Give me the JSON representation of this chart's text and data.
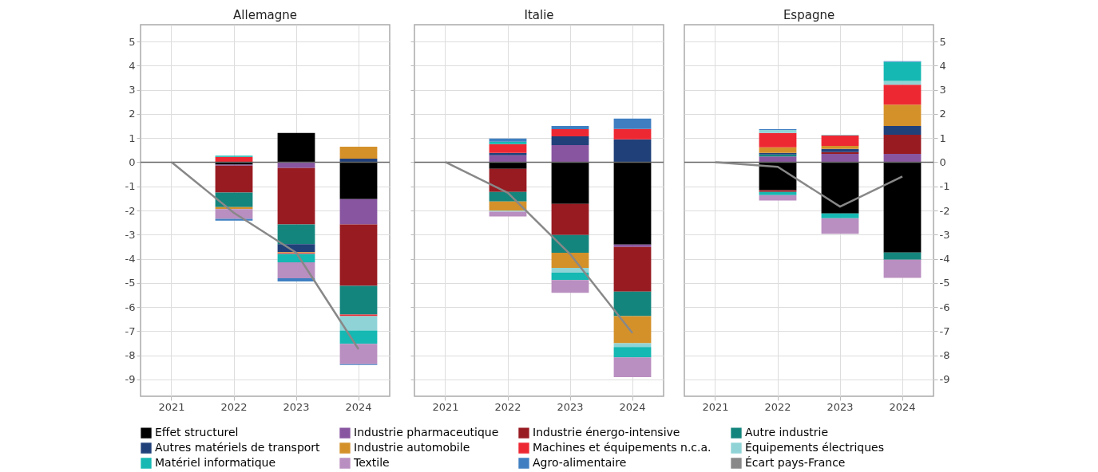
{
  "chart_data": [
    {
      "type": "bar",
      "title": "Allemagne",
      "stacked": true,
      "grid": true,
      "legend": "bottom",
      "categories": [
        "2021",
        "2022",
        "2023",
        "2024"
      ],
      "ylim": [
        -9.7,
        5.7
      ],
      "yticks": [
        -9,
        -8,
        -7,
        -6,
        -5,
        -4,
        -3,
        -2,
        -1,
        0,
        1,
        2,
        3,
        4,
        5
      ],
      "ref_lines": [
        {
          "axis": "y",
          "value": 0,
          "color": "#666666"
        }
      ],
      "series": [
        {
          "name": "Effet structurel",
          "color": "#000000",
          "values": [
            null,
            -0.1,
            1.21,
            -1.53
          ]
        },
        {
          "name": "Industrie pharmaceutique",
          "color": "#8856a0",
          "values": [
            null,
            -0.04,
            -0.24,
            -1.05
          ]
        },
        {
          "name": "Industrie énergo-intensive",
          "color": "#981b22",
          "values": [
            null,
            -1.12,
            -2.34,
            -2.54
          ]
        },
        {
          "name": "Autre industrie",
          "color": "#14857d",
          "values": [
            null,
            -0.6,
            -0.82,
            -1.19
          ]
        },
        {
          "name": "Autres matériels de transport",
          "color": "#20407a",
          "values": [
            null,
            null,
            -0.33,
            0.15
          ]
        },
        {
          "name": "Industrie automobile",
          "color": "#d4912a",
          "values": [
            null,
            -0.08,
            -0.03,
            0.49
          ]
        },
        {
          "name": "Machines et équipements n.c.a.",
          "color": "#ee2833",
          "values": [
            null,
            0.22,
            -0.04,
            -0.07
          ]
        },
        {
          "name": "Équipements électriques",
          "color": "#8fd3d6",
          "values": [
            null,
            null,
            null,
            -0.59
          ]
        },
        {
          "name": "Matériel informatique",
          "color": "#15b8b2",
          "values": [
            null,
            0.05,
            -0.35,
            -0.56
          ]
        },
        {
          "name": "Textile",
          "color": "#b98ec0",
          "values": [
            null,
            -0.41,
            -0.66,
            -0.84
          ]
        },
        {
          "name": "Agro-alimentaire",
          "color": "#3f7fc1",
          "values": [
            null,
            -0.07,
            -0.13,
            -0.03
          ]
        },
        {
          "name": "Écart pays-France",
          "type": "line",
          "color": "#888888",
          "values": [
            0,
            -2.1,
            -3.75,
            -7.75
          ]
        }
      ]
    },
    {
      "type": "bar",
      "title": "Italie",
      "stacked": true,
      "grid": true,
      "legend": false,
      "tick_labels": "x",
      "categories": [
        "2021",
        "2022",
        "2023",
        "2024"
      ],
      "ylim": [
        -9.7,
        5.7
      ],
      "yticks": [
        -9,
        -8,
        -7,
        -6,
        -5,
        -4,
        -3,
        -2,
        -1,
        0,
        1,
        2,
        3,
        4,
        5
      ],
      "ref_lines": [
        {
          "axis": "y",
          "value": 0,
          "color": "#666666"
        }
      ],
      "series": [
        {
          "name": "Effet structurel",
          "color": "#000000",
          "values": [
            null,
            -0.27,
            -1.73,
            -3.41
          ]
        },
        {
          "name": "Industrie pharmaceutique",
          "color": "#8856a0",
          "values": [
            null,
            0.29,
            0.71,
            -0.1
          ]
        },
        {
          "name": "Industrie énergo-intensive",
          "color": "#981b22",
          "values": [
            null,
            -0.96,
            -1.29,
            -1.85
          ]
        },
        {
          "name": "Autre industrie",
          "color": "#14857d",
          "values": [
            null,
            -0.4,
            -0.73,
            -1.02
          ]
        },
        {
          "name": "Autres matériels de transport",
          "color": "#20407a",
          "values": [
            null,
            0.1,
            0.36,
            0.95
          ]
        },
        {
          "name": "Industrie automobile",
          "color": "#d4912a",
          "values": [
            null,
            -0.38,
            -0.63,
            -1.12
          ]
        },
        {
          "name": "Machines et équipements n.c.a.",
          "color": "#ee2833",
          "values": [
            null,
            0.36,
            0.3,
            0.43
          ]
        },
        {
          "name": "Équipements électriques",
          "color": "#8fd3d6",
          "values": [
            null,
            -0.04,
            -0.2,
            -0.16
          ]
        },
        {
          "name": "Matériel informatique",
          "color": "#15b8b2",
          "values": [
            null,
            0.1,
            -0.3,
            -0.43
          ]
        },
        {
          "name": "Textile",
          "color": "#b98ec0",
          "values": [
            null,
            -0.2,
            -0.53,
            -0.82
          ]
        },
        {
          "name": "Agro-alimentaire",
          "color": "#3f7fc1",
          "values": [
            null,
            0.13,
            0.13,
            0.43
          ]
        },
        {
          "name": "Écart pays-France",
          "type": "line",
          "color": "#888888",
          "values": [
            0,
            -1.27,
            -3.81,
            -7.08
          ]
        }
      ]
    },
    {
      "type": "bar",
      "title": "Espagne",
      "stacked": true,
      "grid": true,
      "legend": false,
      "categories": [
        "2021",
        "2022",
        "2023",
        "2024"
      ],
      "y2lim": [
        -9.7,
        5.7
      ],
      "y2ticks": [
        -9,
        -8,
        -7,
        -6,
        -5,
        -4,
        -3,
        -2,
        -1,
        0,
        1,
        2,
        3,
        4,
        5
      ],
      "ref_lines": [
        {
          "axis": "y2",
          "value": 0,
          "color": "#666666"
        }
      ],
      "series": [
        {
          "name": "Effet structurel",
          "axis": "y2",
          "color": "#000000",
          "values": [
            null,
            -1.16,
            -2.12,
            -3.74
          ]
        },
        {
          "name": "Industrie pharmaceutique",
          "axis": "y2",
          "color": "#8856a0",
          "values": [
            null,
            0.24,
            0.35,
            0.35
          ]
        },
        {
          "name": "Industrie énergo-intensive",
          "axis": "y2",
          "color": "#981b22",
          "values": [
            null,
            -0.07,
            0.07,
            0.79
          ]
        },
        {
          "name": "Autre industrie",
          "axis": "y2",
          "color": "#14857d",
          "values": [
            null,
            0.08,
            null,
            -0.3
          ]
        },
        {
          "name": "Autres matériels de transport",
          "axis": "y2",
          "color": "#20407a",
          "values": [
            null,
            0.07,
            0.13,
            0.36
          ]
        },
        {
          "name": "Industrie automobile",
          "axis": "y2",
          "color": "#d4912a",
          "values": [
            null,
            0.23,
            0.13,
            0.89
          ]
        },
        {
          "name": "Machines et équipements n.c.a.",
          "axis": "y2",
          "color": "#ee2833",
          "values": [
            null,
            0.59,
            0.43,
            0.82
          ]
        },
        {
          "name": "Équipements électriques",
          "axis": "y2",
          "color": "#8fd3d6",
          "values": [
            null,
            0.13,
            0.03,
            0.16
          ]
        },
        {
          "name": "Matériel informatique",
          "axis": "y2",
          "color": "#15b8b2",
          "values": [
            null,
            -0.13,
            -0.2,
            0.79
          ]
        },
        {
          "name": "Textile",
          "axis": "y2",
          "color": "#b98ec0",
          "values": [
            null,
            -0.23,
            -0.65,
            -0.75
          ]
        },
        {
          "name": "Agro-alimentaire",
          "axis": "y2",
          "color": "#3f7fc1",
          "values": [
            null,
            0.03,
            null,
            0.03
          ]
        },
        {
          "name": "Écart pays-France",
          "axis": "y2",
          "type": "line",
          "color": "#888888",
          "values": [
            0,
            -0.19,
            -1.84,
            -0.59
          ]
        }
      ]
    }
  ]
}
